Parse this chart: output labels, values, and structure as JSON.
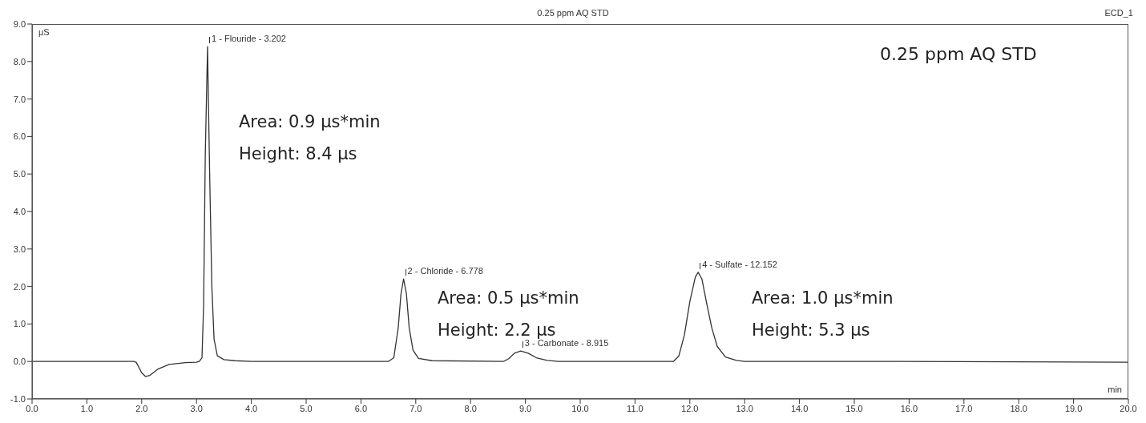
{
  "chart_data": {
    "type": "line",
    "title": "0.25 ppm AQ STD",
    "ylabel": "µS",
    "xlabel": "min",
    "annotations": [
      "ECD_1",
      "0.25 ppm AQ STD",
      "Area: 0.9 µs*min",
      "Height: 8.4 µs",
      "Area: 0.5 µs*min",
      "Height: 2.2 µs",
      "Area: 1.0 µs*min",
      "Height: 5.3 µs",
      {
        "text": "1 - Flouride - 3.202",
        "x": 3.202,
        "y": 8.4
      },
      {
        "text": "2 - Chloride - 6.778",
        "x": 6.778,
        "y": 2.2
      },
      {
        "text": "3 - Carbonate - 8.915",
        "x": 8.915,
        "y": 0.28
      },
      {
        "text": "4 - Sulfate - 12.152",
        "x": 12.152,
        "y": 2.38
      }
    ],
    "x": [
      0,
      1.85,
      1.9,
      2.0,
      2.07,
      2.15,
      2.3,
      2.5,
      2.8,
      3.0,
      3.05,
      3.1,
      3.13,
      3.16,
      3.19,
      3.202,
      3.21,
      3.24,
      3.28,
      3.32,
      3.38,
      3.5,
      3.7,
      4.0,
      6.5,
      6.6,
      6.68,
      6.73,
      6.778,
      6.83,
      6.88,
      6.95,
      7.05,
      7.3,
      8.6,
      8.7,
      8.8,
      8.915,
      9.05,
      9.2,
      9.4,
      9.6,
      11.7,
      11.8,
      11.9,
      12.0,
      12.1,
      12.152,
      12.22,
      12.3,
      12.4,
      12.5,
      12.65,
      12.85,
      13.0,
      15.8,
      20
    ],
    "series": [
      {
        "color": "#333333",
        "values": [
          0,
          0,
          -0.02,
          -0.3,
          -0.4,
          -0.37,
          -0.2,
          -0.08,
          -0.03,
          -0.02,
          0,
          0.1,
          1.5,
          5.5,
          7.6,
          8.4,
          7.6,
          5,
          2,
          0.6,
          0.15,
          0.05,
          0.02,
          0,
          0,
          0.1,
          0.9,
          1.8,
          2.2,
          1.8,
          0.9,
          0.3,
          0.08,
          0.02,
          0,
          0.08,
          0.22,
          0.28,
          0.22,
          0.1,
          0.03,
          0,
          0,
          0.15,
          0.7,
          1.6,
          2.25,
          2.38,
          2.2,
          1.6,
          0.9,
          0.4,
          0.12,
          0.03,
          0,
          0,
          -0.02
        ]
      }
    ],
    "xlim": [
      0,
      20
    ],
    "xticks": [
      {
        "value": 0,
        "label": "0.0"
      },
      {
        "value": 1,
        "label": "1.0"
      },
      {
        "value": 2,
        "label": "2.0"
      },
      {
        "value": 3,
        "label": "3.0"
      },
      {
        "value": 4,
        "label": "4.0"
      },
      {
        "value": 5,
        "label": "5.0"
      },
      {
        "value": 6,
        "label": "6.0"
      },
      {
        "value": 7,
        "label": "7.0"
      },
      {
        "value": 8,
        "label": "8.0"
      },
      {
        "value": 9,
        "label": "9.0"
      },
      {
        "value": 10,
        "label": "10.0"
      },
      {
        "value": 11,
        "label": "11.0"
      },
      {
        "value": 12,
        "label": "12.0"
      },
      {
        "value": 13,
        "label": "13.0"
      },
      {
        "value": 14,
        "label": "14.0"
      },
      {
        "value": 15,
        "label": "15.0"
      },
      {
        "value": 16,
        "label": "16.0"
      },
      {
        "value": 17,
        "label": "17.0"
      },
      {
        "value": 18,
        "label": "18.0"
      },
      {
        "value": 19,
        "label": "19.0"
      },
      {
        "value": 20,
        "label": "20.0"
      }
    ],
    "ylim": [
      -1,
      9
    ],
    "yticks": [
      {
        "value": -1,
        "label": "-1.0"
      },
      {
        "value": 0,
        "label": "0.0"
      },
      {
        "value": 1,
        "label": "1.0"
      },
      {
        "value": 2,
        "label": "2.0"
      },
      {
        "value": 3,
        "label": "3.0"
      },
      {
        "value": 4,
        "label": "4.0"
      },
      {
        "value": 5,
        "label": "5.0"
      },
      {
        "value": 6,
        "label": "6.0"
      },
      {
        "value": 7,
        "label": "7.0"
      },
      {
        "value": 8,
        "label": "8.0"
      },
      {
        "value": 9,
        "label": "9.0"
      }
    ],
    "grid": false,
    "legend": false,
    "marker": "none",
    "line_style": "solid"
  }
}
